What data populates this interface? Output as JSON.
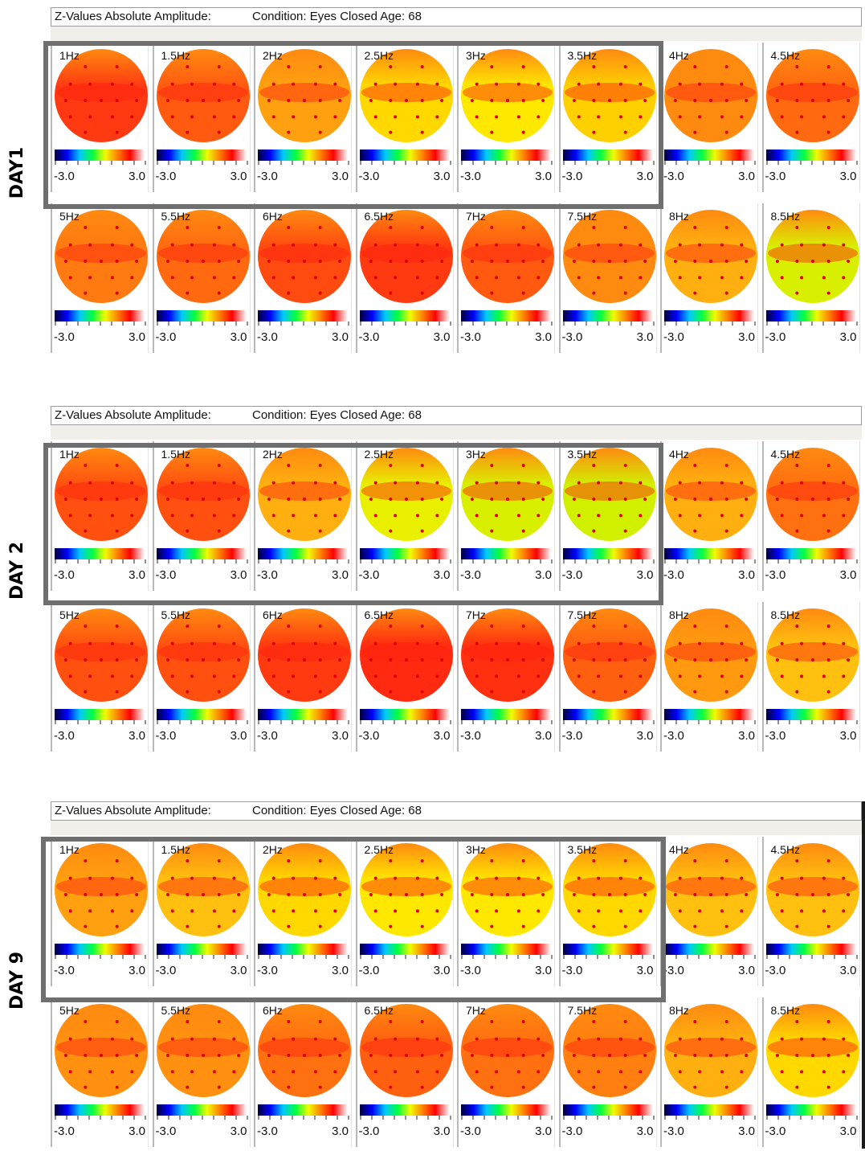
{
  "maps": {
    "title_prefix": "Z-Values Absolute Amplitude:",
    "condition_text": "Condition: Eyes Closed  Age:  68",
    "colorbar": {
      "min_label": "-3.0",
      "max_label": "3.0",
      "colors": [
        "#00003a",
        "#0000ff",
        "#00c8ff",
        "#00ff40",
        "#f0ff00",
        "#ff8000",
        "#ff0000",
        "#ffffff"
      ]
    },
    "days": [
      {
        "label": "DAY1",
        "rows": [
          {
            "frequencies": [
              "1Hz",
              "1.5Hz",
              "2Hz",
              "2.5Hz",
              "3Hz",
              "3.5Hz",
              "4Hz",
              "4.5Hz"
            ]
          },
          {
            "frequencies": [
              "5Hz",
              "5.5Hz",
              "6Hz",
              "6.5Hz",
              "7Hz",
              "7.5Hz",
              "8Hz",
              "8.5Hz"
            ]
          }
        ]
      },
      {
        "label": "DAY 2",
        "rows": [
          {
            "frequencies": [
              "1Hz",
              "1.5Hz",
              "2Hz",
              "2.5Hz",
              "3Hz",
              "3.5Hz",
              "4Hz",
              "4.5Hz"
            ]
          },
          {
            "frequencies": [
              "5Hz",
              "5.5Hz",
              "6Hz",
              "6.5Hz",
              "7Hz",
              "7.5Hz",
              "8Hz",
              "8.5Hz"
            ]
          }
        ]
      },
      {
        "label": "DAY 9",
        "rows": [
          {
            "frequencies": [
              "1Hz",
              "1.5Hz",
              "2Hz",
              "2.5Hz",
              "3Hz",
              "3.5Hz",
              "4Hz",
              "4.5Hz"
            ]
          },
          {
            "frequencies": [
              "5Hz",
              "5.5Hz",
              "6Hz",
              "6.5Hz",
              "7Hz",
              "7.5Hz",
              "8Hz",
              "8.5Hz"
            ]
          }
        ]
      }
    ],
    "highlight": "first six frequencies (1Hz-3.5Hz) outlined in each day",
    "map_colors": {
      "day1": [
        [
          "#ff3a12",
          "#ff5a10",
          "#ffa010",
          "#ffd800",
          "#ffe800",
          "#ffd000",
          "#ff8a10",
          "#ff6a10"
        ],
        [
          "#ff7a10",
          "#ff6a10",
          "#ff4a10",
          "#ff3a10",
          "#ff5a10",
          "#ff8a10",
          "#ffb010",
          "#d8f000"
        ]
      ],
      "day2": [
        [
          "#ff5010",
          "#ff5010",
          "#ffb010",
          "#e8f000",
          "#d8f000",
          "#d0f000",
          "#ffb010",
          "#ff7010"
        ],
        [
          "#ff5010",
          "#ff5010",
          "#ff3a10",
          "#ff2a10",
          "#ff3010",
          "#ff6010",
          "#ff9a10",
          "#ffc010"
        ]
      ],
      "day9": [
        [
          "#ffa010",
          "#ffc010",
          "#ffd800",
          "#ffe800",
          "#ffe800",
          "#ffd800",
          "#ffc010",
          "#ffc010"
        ],
        [
          "#ff9010",
          "#ff9010",
          "#ff7010",
          "#ff6010",
          "#ff7010",
          "#ff8010",
          "#ffb010",
          "#ffd800"
        ]
      ]
    }
  }
}
